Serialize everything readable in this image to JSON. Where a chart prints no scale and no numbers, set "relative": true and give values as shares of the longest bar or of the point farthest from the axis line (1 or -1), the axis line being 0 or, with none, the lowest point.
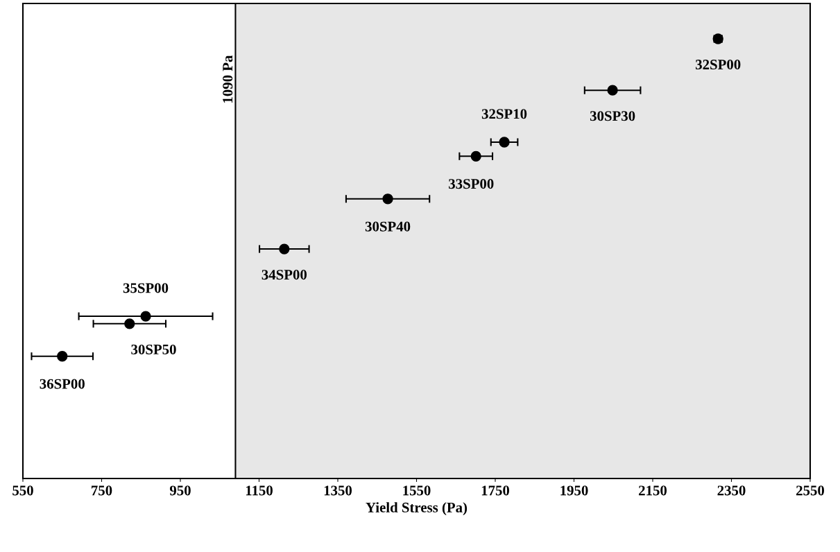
{
  "chart_data": {
    "type": "scatter",
    "relative": true,
    "xlabel": "Yield Stress (Pa)",
    "xlim": [
      550,
      2550
    ],
    "xticks": [
      550,
      750,
      950,
      1150,
      1350,
      1550,
      1750,
      1950,
      2150,
      2350,
      2550
    ],
    "x": [
      2316,
      2048,
      1773,
      1701,
      1477,
      1214,
      862,
      821,
      650
    ],
    "values": [
      1,
      0.883,
      0.765,
      0.733,
      0.636,
      0.522,
      0.369,
      0.352,
      0.278
    ],
    "xerrors": [
      10,
      71,
      34,
      42,
      106,
      63,
      170,
      92,
      78
    ],
    "color": "#000000",
    "marker": "circle",
    "grid": false,
    "ref_lines": [
      {
        "axis": "x",
        "value": 1090,
        "label": "1090 Pa",
        "color": "#000000"
      }
    ],
    "bands": [
      {
        "axis": "x",
        "from": 1090,
        "to": 2550,
        "color": "#e7e7e7"
      }
    ],
    "annotations": [
      {
        "text": "32SP00",
        "x": 2316,
        "y": 1
      },
      {
        "text": "30SP30",
        "x": 2048,
        "y": 0.883
      },
      {
        "text": "32SP10",
        "x": 1773,
        "y": 0.765
      },
      {
        "text": "33SP00",
        "x": 1701,
        "y": 0.733
      },
      {
        "text": "30SP40",
        "x": 1477,
        "y": 0.636
      },
      {
        "text": "34SP00",
        "x": 1214,
        "y": 0.522
      },
      {
        "text": "35SP00",
        "x": 862,
        "y": 0.369
      },
      {
        "text": "30SP50",
        "x": 821,
        "y": 0.352
      },
      {
        "text": "36SP00",
        "x": 650,
        "y": 0.278
      }
    ]
  }
}
